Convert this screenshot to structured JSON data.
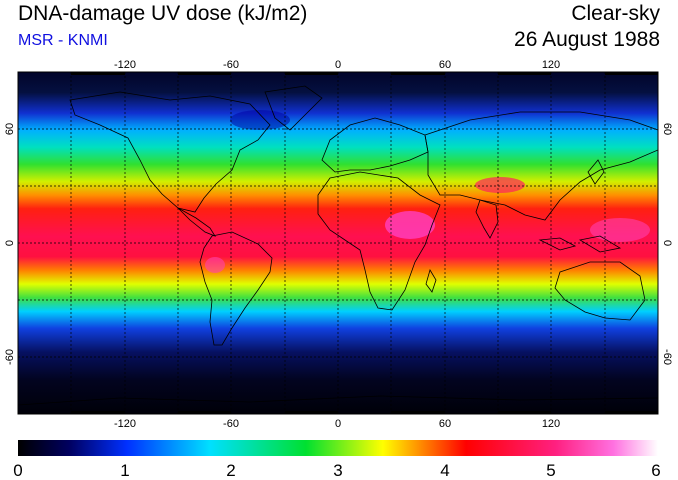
{
  "title": "DNA-damage UV dose (kJ/m2)",
  "subtitle": "MSR - KNMI",
  "sky_condition": "Clear-sky",
  "date": "26 August 1988",
  "map": {
    "lon_ticks": [
      "-120",
      "-60",
      "0",
      "60",
      "120"
    ],
    "lat_ticks": [
      "60",
      "0",
      "-60"
    ],
    "colors": {
      "ocean_dark": "#000018",
      "coast_line": "#000000",
      "grid_line": "#000000"
    }
  },
  "colorbar": {
    "min": 0,
    "max": 6,
    "tick_labels": [
      "0",
      "1",
      "2",
      "3",
      "4",
      "5",
      "6"
    ],
    "stops": [
      "#000000",
      "#0020ff",
      "#00e0ff",
      "#00e030",
      "#ffff00",
      "#ff0000",
      "#ff60d0",
      "#ffffff"
    ]
  }
}
